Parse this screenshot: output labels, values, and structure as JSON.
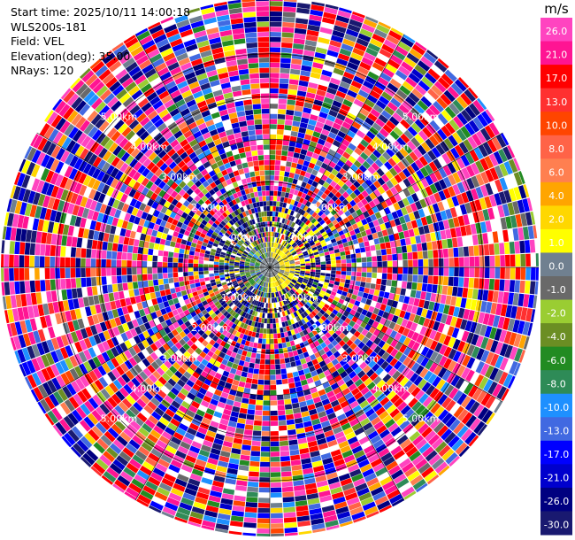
{
  "info": {
    "start_time": "Start time: 2025/10/11 14:00:18",
    "station": "WLS200s-181",
    "field": "Field: VEL",
    "elevation": "Elevation(deg): 35.00",
    "nrays": "NRays: 120"
  },
  "chart_data": {
    "type": "heatmap",
    "projection": "polar-ppi",
    "field": "VEL",
    "elevation_deg": 35.0,
    "nrays": 120,
    "range_rings_km": [
      1,
      2,
      3,
      4,
      5
    ],
    "range_ring_labels": [
      "1.00km",
      "2.00km",
      "3.00km",
      "4.00km",
      "5.00km"
    ],
    "max_range_km": 6.3,
    "grid": true,
    "colorbar": {
      "title": "m/s",
      "ticks": [
        "26.0",
        "21.0",
        "17.0",
        "13.0",
        "10.0",
        "8.0",
        "6.0",
        "4.0",
        "2.0",
        "1.0",
        "0.0",
        "-1.0",
        "-2.0",
        "-4.0",
        "-6.0",
        "-8.0",
        "-10.0",
        "-13.0",
        "-17.0",
        "-21.0",
        "-26.0",
        "-30.0"
      ],
      "colors": [
        "#ff44c0",
        "#ff1493",
        "#ff0000",
        "#ff3030",
        "#ff4500",
        "#ff6347",
        "#ff7f50",
        "#ffa500",
        "#ffd700",
        "#ffff00",
        "#708090",
        "#696969",
        "#9acd32",
        "#6b8e23",
        "#228b22",
        "#2e8b57",
        "#1e90ff",
        "#4169e1",
        "#0000ff",
        "#0000cd",
        "#000080",
        "#191970"
      ]
    },
    "near_field": {
      "description_values": "receding (yellow) to the east, approaching (green/blue) to the west, near-zero (grey) at center",
      "inner_radius_km": 0.6
    }
  }
}
